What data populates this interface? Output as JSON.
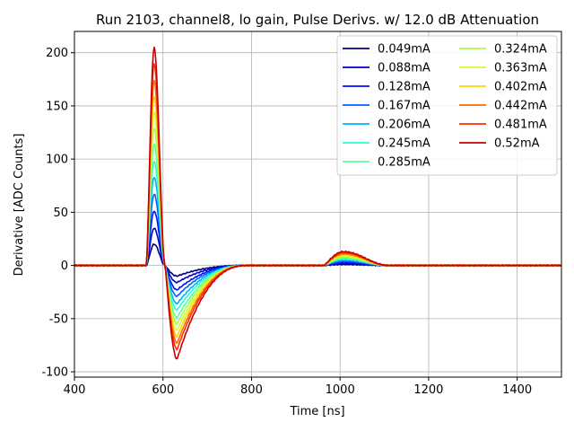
{
  "chart_data": {
    "type": "line",
    "title": "Run 2103, channel8, lo gain, Pulse Derivs. w/ 12.0 dB Attenuation",
    "xlabel": "Time [ns]",
    "ylabel": "Derivative [ADC Counts]",
    "xlim": [
      400,
      1500
    ],
    "ylim": [
      -105,
      220
    ],
    "xticks": [
      400,
      600,
      800,
      1000,
      1200,
      1400
    ],
    "yticks": [
      -100,
      -50,
      0,
      50,
      100,
      150,
      200
    ],
    "grid": true,
    "legend_position": "top-right",
    "legend_columns": 2,
    "shape": {
      "baseline_end_ns": 562,
      "peak_ns": 580,
      "cross_ns": 605,
      "trough_ns": 632,
      "recover_ns": 790,
      "bump_start_ns": 965,
      "bump_peak_ns": 1008,
      "bump_end_ns": 1110
    },
    "series": [
      {
        "name": "0.049mA",
        "color": "#00007f",
        "peak": 20,
        "trough": -10,
        "bump": 1
      },
      {
        "name": "0.088mA",
        "color": "#0000c8",
        "peak": 35,
        "trough": -16,
        "bump": 2
      },
      {
        "name": "0.128mA",
        "color": "#0010ff",
        "peak": 51,
        "trough": -23,
        "bump": 3
      },
      {
        "name": "0.167mA",
        "color": "#0060ff",
        "peak": 67,
        "trough": -29,
        "bump": 4
      },
      {
        "name": "0.206mA",
        "color": "#00b0ff",
        "peak": 83,
        "trough": -36,
        "bump": 5
      },
      {
        "name": "0.245mA",
        "color": "#29ffce",
        "peak": 98,
        "trough": -42,
        "bump": 6
      },
      {
        "name": "0.285mA",
        "color": "#5aff9d",
        "peak": 114,
        "trough": -49,
        "bump": 7
      },
      {
        "name": "0.324mA",
        "color": "#a4ff53",
        "peak": 129,
        "trough": -55,
        "bump": 8
      },
      {
        "name": "0.363mA",
        "color": "#ceff29",
        "peak": 144,
        "trough": -61,
        "bump": 9
      },
      {
        "name": "0.402mA",
        "color": "#ffd700",
        "peak": 159,
        "trough": -67,
        "bump": 10
      },
      {
        "name": "0.442mA",
        "color": "#ff6800",
        "peak": 174,
        "trough": -73,
        "bump": 11
      },
      {
        "name": "0.481mA",
        "color": "#ff2e00",
        "peak": 190,
        "trough": -79,
        "bump": 12
      },
      {
        "name": "0.52mA",
        "color": "#c80000",
        "peak": 205,
        "trough": -88,
        "bump": 13
      }
    ]
  }
}
